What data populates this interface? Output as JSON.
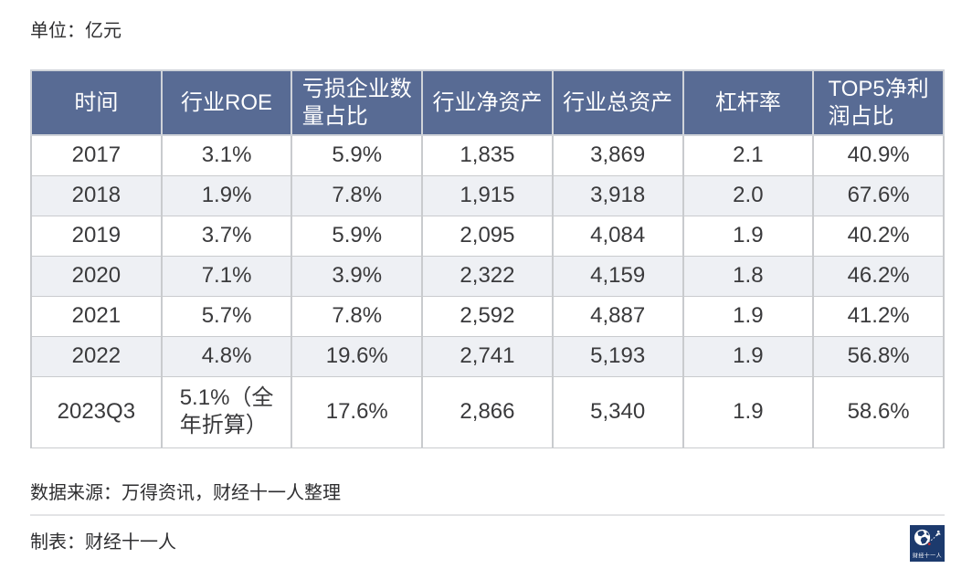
{
  "page": {
    "unit_label": "单位：亿元",
    "source_note": "数据来源：万得资讯，财经十一人整理",
    "credit_note": "制表：财经十一人",
    "logo_text": "财经十一人"
  },
  "colors": {
    "header_bg": "#586b94",
    "stripe_bg": "#eef0f4",
    "logo_bg": "#1c3a6d",
    "logo_accent": "#c3272b"
  },
  "chart_data": {
    "type": "table",
    "title": "单位：亿元",
    "columns": [
      "时间",
      "行业ROE",
      "亏损企业数量占比",
      "行业净资产",
      "行业总资产",
      "杠杆率",
      "TOP5净利润占比"
    ],
    "columns_display": [
      "时间",
      "行业ROE",
      "亏损企业数\n量占比",
      "行业净资产",
      "行业总资产",
      "杠杆率",
      "TOP5净利\n润占比"
    ],
    "rows": [
      [
        "2017",
        "3.1%",
        "5.9%",
        "1,835",
        "3,869",
        "2.1",
        "40.9%"
      ],
      [
        "2018",
        "1.9%",
        "7.8%",
        "1,915",
        "3,918",
        "2.0",
        "67.6%"
      ],
      [
        "2019",
        "3.7%",
        "5.9%",
        "2,095",
        "4,084",
        "1.9",
        "40.2%"
      ],
      [
        "2020",
        "7.1%",
        "3.9%",
        "2,322",
        "4,159",
        "1.8",
        "46.2%"
      ],
      [
        "2021",
        "5.7%",
        "7.8%",
        "2,592",
        "4,887",
        "1.9",
        "41.2%"
      ],
      [
        "2022",
        "4.8%",
        "19.6%",
        "2,741",
        "5,193",
        "1.9",
        "56.8%"
      ],
      [
        "2023Q3",
        "5.1%（全\n年折算）",
        "17.6%",
        "2,866",
        "5,340",
        "1.9",
        "58.6%"
      ]
    ],
    "notes": {
      "unit": "单位：亿元",
      "source": "数据来源：万得资讯，财经十一人整理",
      "credit": "制表：财经十一人"
    },
    "layout": {
      "stripe_rows": [
        "2018",
        "2020",
        "2022"
      ],
      "grid": "on",
      "legend": "none"
    }
  }
}
